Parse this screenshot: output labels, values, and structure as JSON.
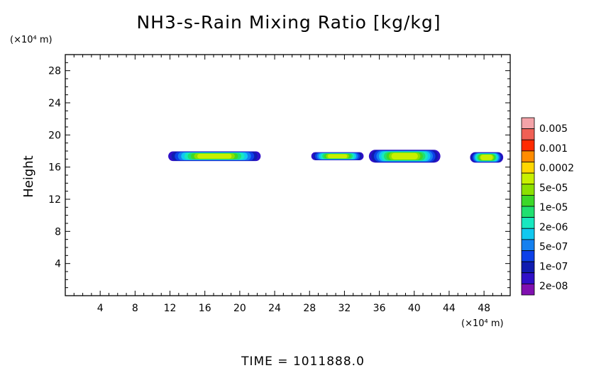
{
  "chart_data": {
    "type": "contour",
    "title": "NH3-s-Rain Mixing Ratio [kg/kg]",
    "ylabel": "Height",
    "x_unit_label": "(×10⁴ m)",
    "y_unit_label": "(×10⁴ m)",
    "xlim": [
      0,
      51
    ],
    "ylim": [
      0,
      30
    ],
    "x_ticks": [
      "4",
      "8",
      "12",
      "16",
      "20",
      "24",
      "28",
      "32",
      "36",
      "40",
      "44",
      "48"
    ],
    "x_tick_values": [
      4,
      8,
      12,
      16,
      20,
      24,
      28,
      32,
      36,
      40,
      44,
      48
    ],
    "y_ticks": [
      "4",
      "8",
      "12",
      "16",
      "20",
      "24",
      "28"
    ],
    "y_tick_values": [
      4,
      8,
      12,
      16,
      20,
      24,
      28
    ],
    "colorbar": {
      "labels": [
        "0.005",
        "0.001",
        "0.0002",
        "5e-05",
        "1e-05",
        "2e-06",
        "5e-07",
        "1e-07",
        "2e-08"
      ],
      "colors_top_to_bottom": [
        "#f4a3a8",
        "#f06055",
        "#ff2a00",
        "#ff8c00",
        "#ffd700",
        "#c8f000",
        "#8ce000",
        "#3cd828",
        "#20e070",
        "#18e8c0",
        "#10c8f0",
        "#1480f0",
        "#0c40e8",
        "#101cb0",
        "#3010c8",
        "#8010b0"
      ]
    },
    "regions": [
      {
        "x_range": [
          11.8,
          22.4
        ],
        "y_range": [
          16.8,
          18.0
        ],
        "peak_level": "5e-05"
      },
      {
        "x_range": [
          28.2,
          34.2
        ],
        "y_range": [
          16.9,
          17.9
        ],
        "peak_level": "5e-05"
      },
      {
        "x_range": [
          34.8,
          43.0
        ],
        "y_range": [
          16.6,
          18.2
        ],
        "peak_level": "5e-05"
      },
      {
        "x_range": [
          46.4,
          50.2
        ],
        "y_range": [
          16.6,
          17.9
        ],
        "peak_level": "5e-05"
      }
    ],
    "time_label": "TIME  =  1011888.0"
  }
}
